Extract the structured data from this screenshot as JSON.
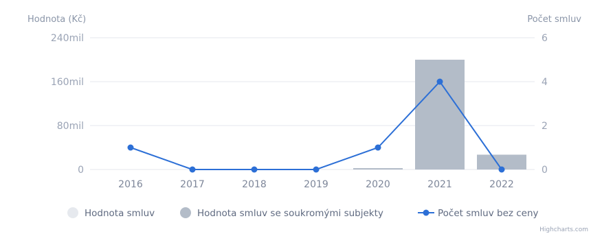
{
  "chart_data": {
    "type": "bar",
    "categories": [
      "2016",
      "2017",
      "2018",
      "2019",
      "2020",
      "2021",
      "2022"
    ],
    "y_left": {
      "title": "Hodnota (Kč)",
      "ticks": [
        "240mil",
        "160mil",
        "80mil",
        "0"
      ],
      "range": [
        0,
        240000000
      ]
    },
    "y_right": {
      "title": "Počet smluv",
      "ticks": [
        "6",
        "4",
        "2",
        "0"
      ],
      "range": [
        0,
        6
      ]
    },
    "series": [
      {
        "name": "Hodnota smluv",
        "kind": "bar",
        "axis": "left",
        "color": "#e6e9ee",
        "values": [
          0,
          0,
          0,
          0,
          0,
          0,
          0
        ]
      },
      {
        "name": "Hodnota smluv se soukromými subjekty",
        "kind": "bar",
        "axis": "left",
        "color": "#b3bcc8",
        "values": [
          0,
          0,
          0,
          0,
          2500000,
          200000000,
          27000000
        ]
      },
      {
        "name": "Počet smluv bez ceny",
        "kind": "line",
        "axis": "right",
        "color": "#2c6fd6",
        "values": [
          1,
          0,
          0,
          0,
          1,
          4,
          0
        ]
      }
    ],
    "legend": "bottom",
    "grid": true
  },
  "credit": "Highcharts.com"
}
